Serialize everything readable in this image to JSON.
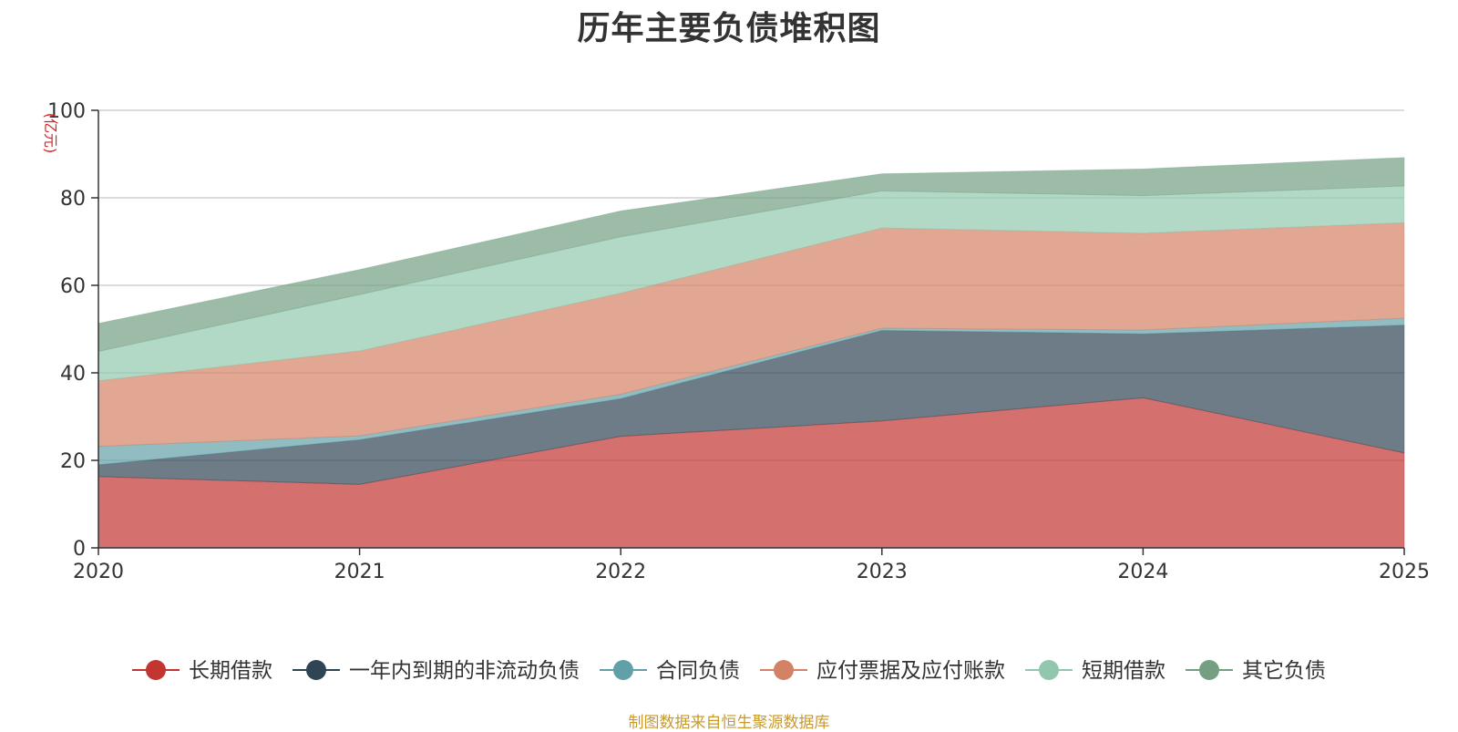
{
  "chart_data": {
    "type": "area",
    "stacked": true,
    "title": "历年主要负债堆积图",
    "ylabel": "(亿元)",
    "xlabel": "",
    "x": [
      "2020",
      "2021",
      "2022",
      "2023",
      "2024",
      "2025"
    ],
    "ylim": [
      0,
      100
    ],
    "yticks": [
      0,
      20,
      40,
      60,
      80,
      100
    ],
    "grid": true,
    "legend_position": "bottom",
    "series": [
      {
        "name": "长期借款",
        "color": "#c23531",
        "values": [
          16.3,
          14.5,
          25.5,
          29.0,
          34.3,
          21.7
        ]
      },
      {
        "name": "一年内到期的非流动负债",
        "color": "#2f4554",
        "values": [
          2.7,
          10.2,
          8.6,
          20.7,
          14.6,
          29.2
        ]
      },
      {
        "name": "合同负债",
        "color": "#61a0a8",
        "values": [
          4.2,
          0.9,
          1.0,
          0.5,
          0.9,
          1.6
        ]
      },
      {
        "name": "应付票据及应付账款",
        "color": "#d48265",
        "values": [
          15.0,
          19.4,
          23.1,
          22.9,
          22.1,
          21.8
        ]
      },
      {
        "name": "短期借款",
        "color": "#91c7ae",
        "values": [
          6.7,
          12.9,
          12.9,
          8.5,
          8.6,
          8.4
        ]
      },
      {
        "name": "其它负债",
        "color": "#749f83",
        "values": [
          6.4,
          5.7,
          5.9,
          3.9,
          6.1,
          6.5
        ]
      }
    ]
  },
  "footer": {
    "source": "制图数据来自恒生聚源数据库"
  }
}
